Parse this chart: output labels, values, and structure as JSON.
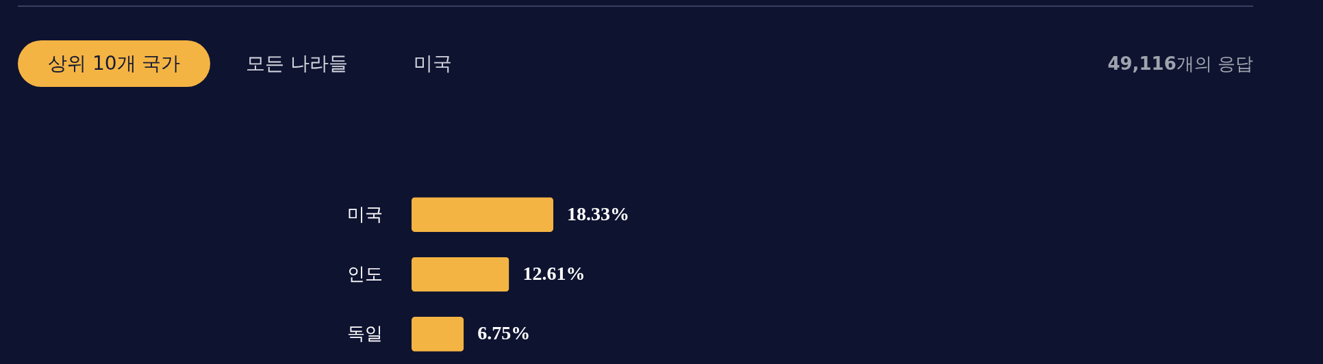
{
  "chart_data": {
    "type": "bar",
    "orientation": "horizontal",
    "title": "상위 10개 국가",
    "subtitle": "49,116개의 응답",
    "annotations": [
      "모든 나라들",
      "미국"
    ],
    "categories": [
      "미국",
      "인도",
      "독일"
    ],
    "values": [
      18.33,
      12.61,
      6.75
    ],
    "value_labels": [
      "18.33%",
      "12.61%",
      "6.75%"
    ],
    "color": "#f4b443"
  }
}
